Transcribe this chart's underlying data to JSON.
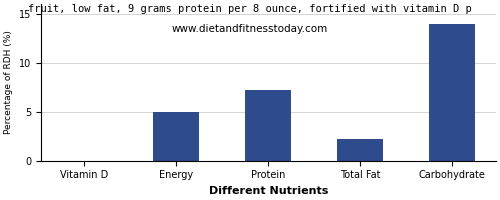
{
  "title": "fruit, low fat, 9 grams protein per 8 ounce, fortified with vitamin D p",
  "subtitle": "www.dietandfitnesstoday.com",
  "xlabel": "Different Nutrients",
  "ylabel": "Percentage of RDH (%)",
  "categories": [
    "Vitamin D",
    "Energy",
    "Protein",
    "Total Fat",
    "Carbohydrate"
  ],
  "values": [
    0,
    5,
    7.2,
    2.2,
    14
  ],
  "bar_color": "#2e4b8c",
  "ylim": [
    0,
    16
  ],
  "yticks": [
    0,
    5,
    10,
    15
  ],
  "figsize": [
    5.0,
    2.0
  ],
  "dpi": 100,
  "title_fontsize": 7.5,
  "subtitle_fontsize": 7.5,
  "xlabel_fontsize": 8,
  "ylabel_fontsize": 6.5,
  "tick_fontsize": 7,
  "bar_width": 0.5
}
